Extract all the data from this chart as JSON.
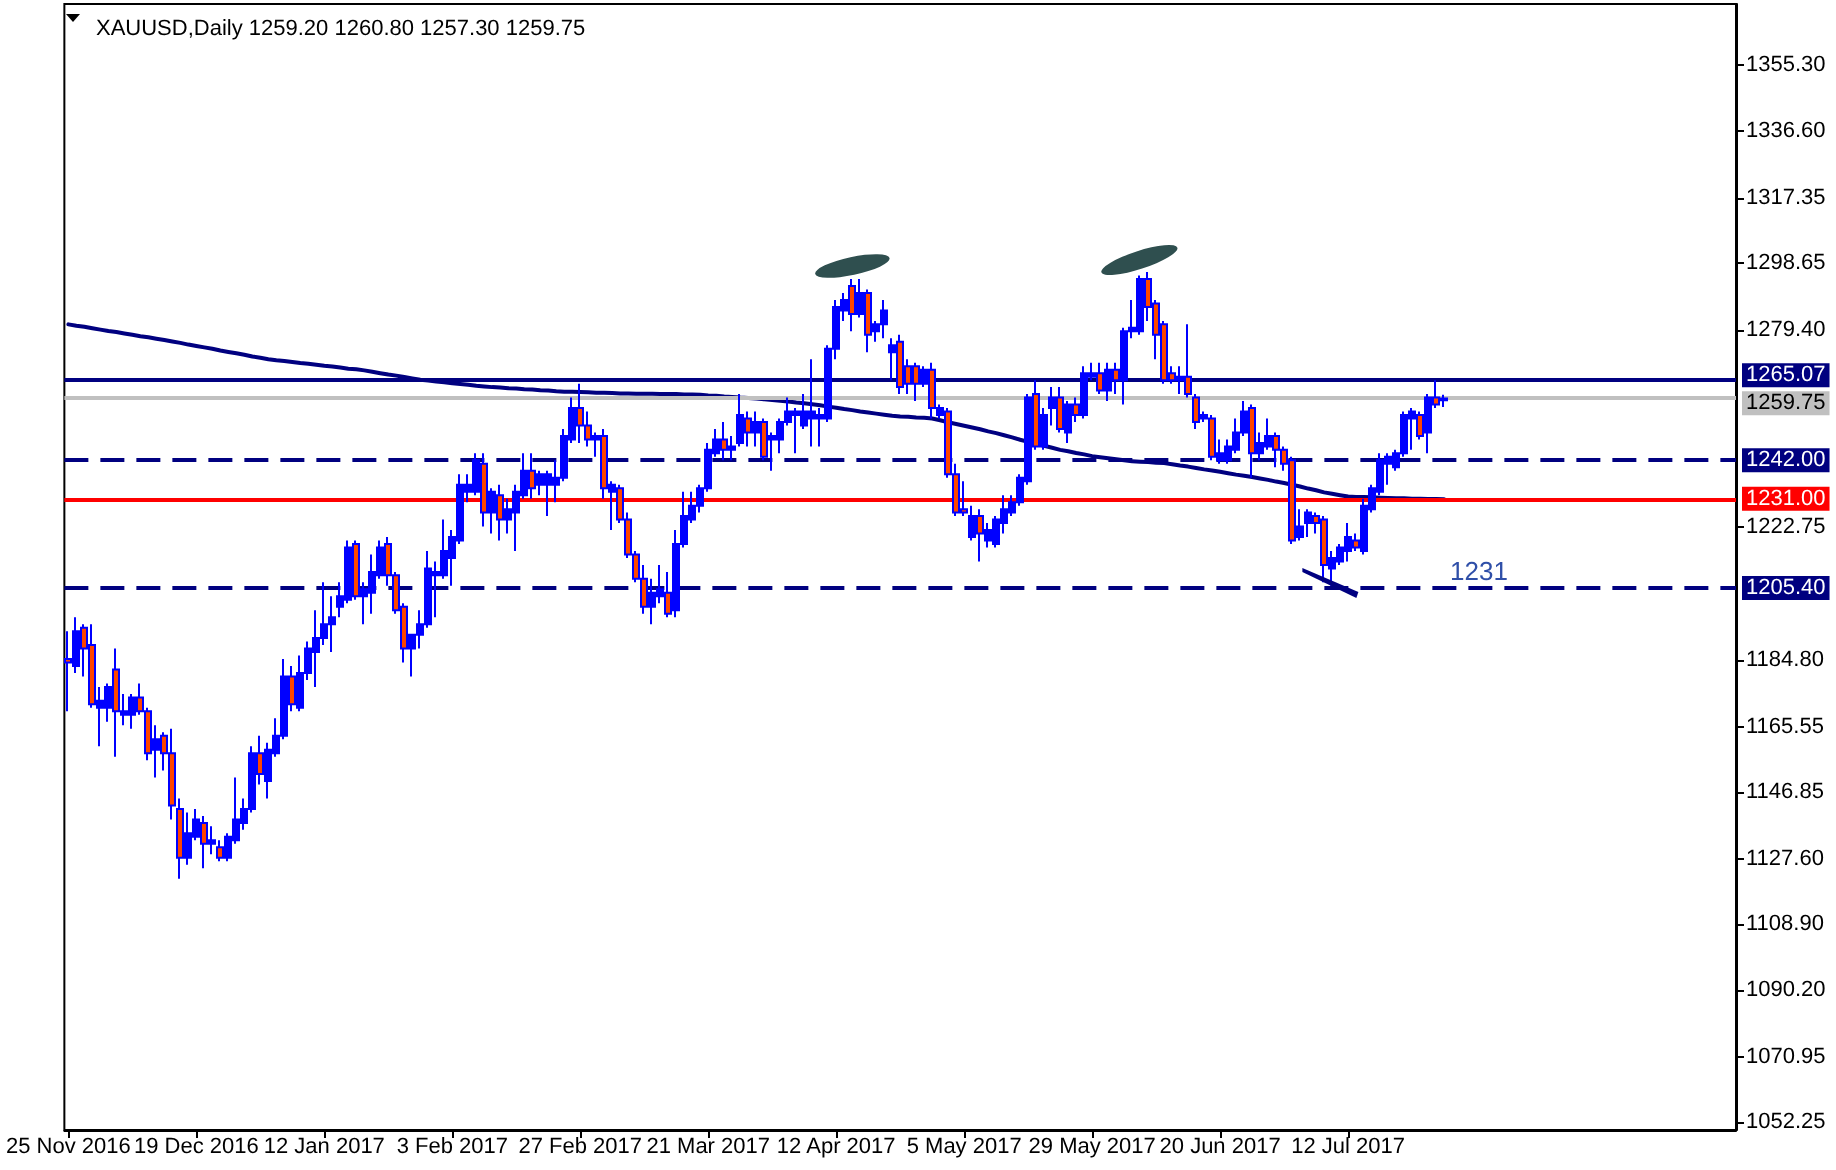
{
  "chart_data": {
    "type": "candlestick",
    "title": "XAUUSD,Daily 1259.20 1260.80 1257.30 1259.75",
    "annotations": [
      "1231"
    ],
    "categories": [
      "25 Nov 2016",
      null,
      null,
      null,
      null,
      null,
      null,
      null,
      null,
      null,
      null,
      null,
      null,
      null,
      null,
      null,
      "19 Dec 2016",
      null,
      null,
      null,
      null,
      null,
      null,
      null,
      null,
      null,
      null,
      null,
      null,
      null,
      null,
      null,
      "12 Jan 2017",
      null,
      null,
      null,
      null,
      null,
      null,
      null,
      null,
      null,
      null,
      null,
      null,
      null,
      null,
      null,
      "3 Feb 2017",
      null,
      null,
      null,
      null,
      null,
      null,
      null,
      null,
      null,
      null,
      null,
      null,
      null,
      null,
      null,
      "27 Feb 2017",
      null,
      null,
      null,
      null,
      null,
      null,
      null,
      null,
      null,
      null,
      null,
      null,
      null,
      null,
      null,
      "21 Mar 2017",
      null,
      null,
      null,
      null,
      null,
      null,
      null,
      null,
      null,
      null,
      null,
      null,
      null,
      null,
      null,
      "12 Apr 2017",
      null,
      null,
      null,
      null,
      null,
      null,
      null,
      null,
      null,
      null,
      null,
      null,
      null,
      null,
      null,
      "5 May 2017",
      null,
      null,
      null,
      null,
      null,
      null,
      null,
      null,
      null,
      null,
      null,
      null,
      null,
      null,
      null,
      "29 May 2017",
      null,
      null,
      null,
      null,
      null,
      null,
      null,
      null,
      null,
      null,
      null,
      null,
      null,
      null,
      null,
      "20 Jun 2017",
      null,
      null,
      null,
      null,
      null,
      null,
      null,
      null,
      null,
      null,
      null,
      null,
      null,
      null,
      null,
      "12 Jul 2017",
      null,
      null,
      null,
      null,
      null,
      null,
      null,
      null,
      null,
      null,
      null,
      null
    ],
    "series": [
      {
        "color": "#0000ff",
        "colors": [
          "#ff4500",
          "#0000ff",
          "#ff4500",
          "#ff4500",
          "#0000ff",
          "#0000ff",
          "#ff4500",
          "#0000ff",
          "#0000ff",
          "#ff4500",
          "#ff4500",
          "#0000ff",
          "#ff4500",
          "#ff4500",
          "#ff4500",
          "#0000ff",
          "#0000ff",
          "#ff4500",
          "#0000ff",
          "#ff4500",
          "#0000ff",
          "#0000ff",
          "#0000ff",
          "#0000ff",
          "#ff4500",
          "#0000ff",
          "#0000ff",
          "#0000ff",
          "#ff4500",
          "#0000ff",
          "#0000ff",
          "#0000ff",
          "#0000ff",
          "#0000ff",
          "#0000ff",
          "#0000ff",
          "#ff4500",
          "#0000ff",
          "#0000ff",
          "#0000ff",
          "#ff4500",
          "#ff4500",
          "#ff4500",
          "#0000ff",
          "#0000ff",
          "#0000ff",
          "#0000ff",
          "#0000ff",
          "#0000ff",
          "#0000ff",
          "#0000ff",
          "#0000ff",
          "#ff4500",
          "#0000ff",
          "#ff4500",
          "#0000ff",
          "#0000ff",
          "#0000ff",
          "#ff4500",
          "#0000ff",
          "#0000ff",
          "#0000ff",
          "#0000ff",
          "#0000ff",
          "#ff4500",
          "#ff4500",
          "#0000ff",
          "#ff4500",
          "#0000ff",
          "#ff4500",
          "#ff4500",
          "#ff4500",
          "#ff4500",
          "#0000ff",
          "#0000ff",
          "#ff4500",
          "#0000ff",
          "#0000ff",
          "#0000ff",
          "#0000ff",
          "#0000ff",
          "#0000ff",
          "#ff4500",
          "#0000ff",
          "#0000ff",
          "#ff4500",
          "#0000ff",
          "#ff4500",
          "#0000ff",
          "#0000ff",
          "#0000ff",
          "#0000ff",
          "#0000ff",
          "#0000ff",
          "#0000ff",
          "#0000ff",
          "#0000ff",
          "#0000ff",
          "#ff4500",
          "#0000ff",
          "#ff4500",
          "#0000ff",
          "#0000ff",
          "#0000ff",
          "#ff4500",
          "#ff4500",
          "#ff4500",
          "#0000ff",
          "#ff4500",
          "#0000ff",
          "#ff4500",
          "#ff4500",
          "#ff4500",
          "#0000ff",
          "#ff4500",
          "#0000ff",
          "#0000ff",
          "#0000ff",
          "#0000ff",
          "#0000ff",
          "#0000ff",
          "#ff4500",
          "#0000ff",
          "#0000ff",
          "#ff4500",
          "#0000ff",
          "#ff4500",
          "#0000ff",
          "#0000ff",
          "#ff4500",
          "#0000ff",
          "#ff4500",
          "#0000ff",
          "#0000ff",
          "#0000ff",
          "#ff4500",
          "#ff4500",
          "#ff4500",
          "#ff4500",
          "#0000ff",
          "#ff4500",
          "#ff4500",
          "#0000ff",
          "#ff4500",
          "#0000ff",
          "#0000ff",
          "#0000ff",
          "#0000ff",
          "#ff4500",
          "#0000ff",
          "#0000ff",
          "#ff4500",
          "#ff4500",
          "#ff4500",
          "#0000ff",
          "#0000ff",
          "#ff4500",
          "#ff4500",
          "#0000ff",
          "#0000ff",
          "#0000ff",
          "#ff4500",
          "#0000ff",
          "#0000ff",
          "#0000ff",
          "#0000ff",
          "#0000ff",
          "#0000ff",
          "#0000ff",
          "#ff4500",
          "#0000ff",
          "#ff4500",
          "#0000ff"
        ],
        "ohlc": [
          [
            1185,
            1193,
            1170,
            1184
          ],
          [
            1183,
            1197,
            1181,
            1193
          ],
          [
            1194,
            1195,
            1180,
            1188
          ],
          [
            1189,
            1195,
            1171,
            1172
          ],
          [
            1171,
            1177,
            1160,
            1173
          ],
          [
            1171,
            1178,
            1167,
            1177
          ],
          [
            1182,
            1188,
            1157,
            1170
          ],
          [
            1169,
            1175,
            1166,
            1170
          ],
          [
            1169,
            1175,
            1165,
            1174
          ],
          [
            1174,
            1178,
            1169,
            1170
          ],
          [
            1170,
            1171,
            1156,
            1158
          ],
          [
            1159,
            1166,
            1151,
            1162
          ],
          [
            1163,
            1164,
            1153,
            1158
          ],
          [
            1158,
            1165,
            1139,
            1143
          ],
          [
            1142,
            1145,
            1122,
            1128
          ],
          [
            1128,
            1141,
            1126,
            1135
          ],
          [
            1134,
            1142,
            1133,
            1139
          ],
          [
            1138,
            1140,
            1125,
            1132
          ],
          [
            1132,
            1137,
            1129,
            1133
          ],
          [
            1131,
            1133,
            1127,
            1128
          ],
          [
            1128,
            1135,
            1127,
            1134
          ],
          [
            1133,
            1151,
            1132,
            1139
          ],
          [
            1138,
            1145,
            1136,
            1142
          ],
          [
            1142,
            1160,
            1141,
            1158
          ],
          [
            1158,
            1163,
            1149,
            1152
          ],
          [
            1150,
            1161,
            1145,
            1159
          ],
          [
            1158,
            1168,
            1157,
            1163
          ],
          [
            1163,
            1185,
            1162,
            1180
          ],
          [
            1180,
            1183,
            1170,
            1172
          ],
          [
            1171,
            1186,
            1170,
            1181
          ],
          [
            1181,
            1190,
            1179,
            1188
          ],
          [
            1187,
            1199,
            1177,
            1191
          ],
          [
            1191,
            1207,
            1189,
            1195
          ],
          [
            1195,
            1203,
            1187,
            1197
          ],
          [
            1200,
            1207,
            1197,
            1203
          ],
          [
            1202,
            1219,
            1201,
            1217
          ],
          [
            1218,
            1219,
            1202,
            1203
          ],
          [
            1203,
            1207,
            1195,
            1205
          ],
          [
            1204,
            1215,
            1198,
            1210
          ],
          [
            1209,
            1219,
            1208,
            1217
          ],
          [
            1218,
            1220,
            1206,
            1209
          ],
          [
            1209,
            1210,
            1198,
            1199
          ],
          [
            1200,
            1201,
            1184,
            1188
          ],
          [
            1188,
            1192,
            1180,
            1192
          ],
          [
            1192,
            1199,
            1188,
            1195
          ],
          [
            1195,
            1216,
            1194,
            1211
          ],
          [
            1209,
            1213,
            1197,
            1210
          ],
          [
            1209,
            1225,
            1208,
            1216
          ],
          [
            1214,
            1222,
            1206,
            1220
          ],
          [
            1219,
            1238,
            1218,
            1235
          ],
          [
            1233,
            1238,
            1230,
            1235
          ],
          [
            1233,
            1244,
            1232,
            1242
          ],
          [
            1241,
            1244,
            1223,
            1227
          ],
          [
            1227,
            1234,
            1221,
            1233
          ],
          [
            1232,
            1235,
            1219,
            1225
          ],
          [
            1225,
            1231,
            1221,
            1228
          ],
          [
            1227,
            1235,
            1216,
            1233
          ],
          [
            1232,
            1244,
            1231,
            1239
          ],
          [
            1239,
            1244,
            1231,
            1234
          ],
          [
            1235,
            1239,
            1232,
            1238
          ],
          [
            1235,
            1239,
            1226,
            1238
          ],
          [
            1235,
            1242,
            1230,
            1237
          ],
          [
            1237,
            1251,
            1236,
            1249
          ],
          [
            1248,
            1260,
            1247,
            1257
          ],
          [
            1257,
            1264,
            1247,
            1252
          ],
          [
            1252,
            1256,
            1246,
            1248
          ],
          [
            1248,
            1250,
            1243,
            1249
          ],
          [
            1249,
            1251,
            1231,
            1234
          ],
          [
            1233,
            1236,
            1222,
            1235
          ],
          [
            1234,
            1235,
            1224,
            1225
          ],
          [
            1225,
            1227,
            1214,
            1215
          ],
          [
            1215,
            1216,
            1207,
            1208
          ],
          [
            1208,
            1212,
            1198,
            1200
          ],
          [
            1200,
            1208,
            1195,
            1204
          ],
          [
            1203,
            1212,
            1201,
            1205
          ],
          [
            1204,
            1210,
            1197,
            1198
          ],
          [
            1199,
            1222,
            1197,
            1218
          ],
          [
            1218,
            1233,
            1217,
            1226
          ],
          [
            1225,
            1233,
            1224,
            1229
          ],
          [
            1229,
            1235,
            1227,
            1234
          ],
          [
            1234,
            1247,
            1233,
            1245
          ],
          [
            1244,
            1251,
            1243,
            1248
          ],
          [
            1248,
            1253,
            1242,
            1245
          ],
          [
            1245,
            1249,
            1242,
            1246
          ],
          [
            1247,
            1261,
            1246,
            1255
          ],
          [
            1254,
            1256,
            1246,
            1250
          ],
          [
            1250,
            1256,
            1246,
            1253
          ],
          [
            1253,
            1254,
            1242,
            1243
          ],
          [
            1248,
            1250,
            1239,
            1249
          ],
          [
            1248,
            1254,
            1244,
            1253
          ],
          [
            1253,
            1260,
            1252,
            1256
          ],
          [
            1255,
            1257,
            1244,
            1256
          ],
          [
            1252,
            1261,
            1251,
            1256
          ],
          [
            1254,
            1271,
            1246,
            1256
          ],
          [
            1254,
            1257,
            1246,
            1255
          ],
          [
            1254,
            1275,
            1253,
            1274
          ],
          [
            1274,
            1288,
            1271,
            1286
          ],
          [
            1285,
            1290,
            1282,
            1288
          ],
          [
            1292,
            1294,
            1279,
            1284
          ],
          [
            1284,
            1294,
            1283,
            1290
          ],
          [
            1290,
            1291,
            1273,
            1278
          ],
          [
            1279,
            1282,
            1276,
            1281
          ],
          [
            1281,
            1288,
            1277,
            1285
          ],
          [
            1273,
            1277,
            1265,
            1275
          ],
          [
            1276,
            1278,
            1261,
            1263
          ],
          [
            1269,
            1271,
            1261,
            1264
          ],
          [
            1269,
            1270,
            1259,
            1264
          ],
          [
            1264,
            1269,
            1263,
            1268
          ],
          [
            1268,
            1270,
            1254,
            1257
          ],
          [
            1255,
            1258,
            1254,
            1257
          ],
          [
            1256,
            1257,
            1237,
            1238
          ],
          [
            1238,
            1241,
            1226,
            1227
          ],
          [
            1228,
            1236,
            1226,
            1227
          ],
          [
            1220,
            1229,
            1219,
            1226
          ],
          [
            1226,
            1228,
            1213,
            1221
          ],
          [
            1219,
            1224,
            1217,
            1222
          ],
          [
            1218,
            1226,
            1217,
            1225
          ],
          [
            1224,
            1232,
            1221,
            1228
          ],
          [
            1227,
            1232,
            1226,
            1230
          ],
          [
            1230,
            1238,
            1229,
            1237
          ],
          [
            1236,
            1261,
            1235,
            1260
          ],
          [
            1261,
            1265,
            1245,
            1246
          ],
          [
            1246,
            1257,
            1245,
            1255
          ],
          [
            1257,
            1263,
            1252,
            1260
          ],
          [
            1260,
            1263,
            1250,
            1251
          ],
          [
            1250,
            1259,
            1247,
            1258
          ],
          [
            1258,
            1260,
            1253,
            1255
          ],
          [
            1255,
            1269,
            1254,
            1267
          ],
          [
            1266,
            1270,
            1265,
            1267
          ],
          [
            1267,
            1270,
            1261,
            1262
          ],
          [
            1262,
            1270,
            1259,
            1268
          ],
          [
            1268,
            1270,
            1261,
            1265
          ],
          [
            1265,
            1280,
            1258,
            1279
          ],
          [
            1279,
            1288,
            1277,
            1280
          ],
          [
            1279,
            1295,
            1278,
            1294
          ],
          [
            1294,
            1296,
            1282,
            1286
          ],
          [
            1287,
            1288,
            1271,
            1278
          ],
          [
            1281,
            1282,
            1264,
            1265
          ],
          [
            1267,
            1269,
            1264,
            1265
          ],
          [
            1265,
            1269,
            1261,
            1266
          ],
          [
            1266,
            1281,
            1260,
            1261
          ],
          [
            1260,
            1261,
            1251,
            1253
          ],
          [
            1254,
            1256,
            1253,
            1255
          ],
          [
            1254,
            1255,
            1242,
            1243
          ],
          [
            1242,
            1248,
            1241,
            1244
          ],
          [
            1242,
            1248,
            1241,
            1246
          ],
          [
            1245,
            1254,
            1244,
            1250
          ],
          [
            1250,
            1259,
            1249,
            1256
          ],
          [
            1257,
            1258,
            1237,
            1244
          ],
          [
            1244,
            1250,
            1242,
            1247
          ],
          [
            1246,
            1254,
            1245,
            1249
          ],
          [
            1249,
            1250,
            1240,
            1245
          ],
          [
            1245,
            1246,
            1239,
            1241
          ],
          [
            1242,
            1243,
            1218,
            1219
          ],
          [
            1220,
            1228,
            1219,
            1223
          ],
          [
            1224,
            1228,
            1220,
            1227
          ],
          [
            1226,
            1227,
            1221,
            1224
          ],
          [
            1225,
            1226,
            1207,
            1212
          ],
          [
            1211,
            1216,
            1206,
            1214
          ],
          [
            1213,
            1218,
            1212,
            1217
          ],
          [
            1216,
            1224,
            1213,
            1220
          ],
          [
            1219,
            1221,
            1216,
            1217
          ],
          [
            1216,
            1231,
            1215,
            1229
          ],
          [
            1228,
            1235,
            1227,
            1234
          ],
          [
            1233,
            1244,
            1232,
            1242
          ],
          [
            1241,
            1244,
            1235,
            1243
          ],
          [
            1240,
            1245,
            1239,
            1244
          ],
          [
            1244,
            1256,
            1243,
            1255
          ],
          [
            1254,
            1257,
            1245,
            1256
          ],
          [
            1255,
            1256,
            1248,
            1249
          ],
          [
            1250,
            1261,
            1244,
            1260
          ],
          [
            1260,
            1265,
            1257,
            1258
          ],
          [
            1259.2,
            1260.8,
            1257.3,
            1259.75
          ]
        ]
      },
      {
        "type": "line",
        "color": "#000080",
        "values": [
          1281.0,
          1280.6,
          1280.3,
          1279.9,
          1279.5,
          1279.1,
          1278.8,
          1278.4,
          1278.0,
          1277.6,
          1277.3,
          1276.9,
          1276.5,
          1276.1,
          1275.7,
          1275.2,
          1274.8,
          1274.4,
          1274.0,
          1273.5,
          1273.1,
          1272.7,
          1272.3,
          1271.8,
          1271.4,
          1271.0,
          1270.7,
          1270.5,
          1270.2,
          1269.9,
          1269.7,
          1269.4,
          1269.1,
          1268.9,
          1268.6,
          1268.3,
          1268.1,
          1267.8,
          1267.4,
          1267.0,
          1266.6,
          1266.3,
          1265.9,
          1265.5,
          1265.1,
          1264.9,
          1264.6,
          1264.4,
          1264.1,
          1263.9,
          1263.7,
          1263.4,
          1263.2,
          1263.0,
          1262.9,
          1262.7,
          1262.6,
          1262.4,
          1262.3,
          1262.1,
          1262.0,
          1261.8,
          1261.7,
          1261.7,
          1261.6,
          1261.5,
          1261.4,
          1261.4,
          1261.3,
          1261.2,
          1261.2,
          1261.1,
          1261.1,
          1261.1,
          1261.0,
          1261.0,
          1261.0,
          1260.9,
          1260.9,
          1260.8,
          1260.6,
          1260.5,
          1260.3,
          1260.2,
          1260.0,
          1259.9,
          1259.7,
          1259.5,
          1259.3,
          1259.1,
          1258.9,
          1258.6,
          1258.4,
          1258.1,
          1257.8,
          1257.4,
          1257.1,
          1256.7,
          1256.4,
          1256.0,
          1255.7,
          1255.4,
          1255.1,
          1254.8,
          1254.6,
          1254.5,
          1254.3,
          1254.2,
          1254.0,
          1253.5,
          1252.9,
          1252.4,
          1251.9,
          1251.4,
          1250.9,
          1250.3,
          1249.8,
          1249.2,
          1248.6,
          1247.9,
          1247.3,
          null,
          1246.2,
          1245.6,
          1245.0,
          1244.6,
          1244.1,
          1243.7,
          1243.2,
          1242.9,
          1242.6,
          1242.3,
          1242.0,
          1241.7,
          1241.6,
          1241.5,
          1241.3,
          1241.2,
          1240.9,
          1240.5,
          1240.2,
          1239.8,
          1239.4,
          1239.1,
          1238.7,
          1238.3,
          1237.9,
          1237.6,
          1237.2,
          1236.8,
          1236.4,
          1235.9,
          1235.5,
          1235.0,
          1234.5,
          1233.9,
          1233.4,
          1232.8,
          1232.4,
          1232.0,
          1231.6,
          1231.5,
          1231.5,
          1231.4,
          1231.3,
          1231.2,
          1231.1,
          1231.1,
          1231.0,
          1231.0,
          1230.9,
          1230.9,
          1230.8
        ]
      }
    ],
    "ylim": [
      1049.9,
      1372.9
    ],
    "yticks": [
      1052.25,
      1070.95,
      {
        "value": 1090.2,
        "label": "1090.20"
      },
      {
        "value": 1108.9,
        "label": "1108.90"
      },
      {
        "value": 1127.6,
        "label": "1127.60"
      },
      1146.85,
      1165.55,
      {
        "value": 1184.8,
        "label": "1184.80"
      },
      1222.75,
      {
        "value": 1279.4,
        "label": "1279.40"
      },
      1298.65,
      1317.35,
      {
        "value": 1336.6,
        "label": "1336.60"
      },
      {
        "value": 1355.3,
        "label": "1355.30"
      }
    ],
    "ref_lines": [
      {
        "axis": "y",
        "value": 1265.07,
        "label": "1265.07",
        "color": "#000080",
        "line_style": "solid"
      },
      {
        "axis": "y",
        "value": 1259.75,
        "label": "1259.75",
        "color": "#c0c0c0",
        "line_style": "solid"
      },
      {
        "axis": "y",
        "value": 1242,
        "label": "1242.00",
        "color": "#000080",
        "line_style": "dashed"
      },
      {
        "axis": "y",
        "value": 1231,
        "label": "1231.00",
        "color": "#ff0000",
        "line_style": "solid"
      },
      {
        "axis": "y",
        "value": 1205.4,
        "label": "1205.40",
        "color": "#000080",
        "line_style": "dashed"
      }
    ]
  }
}
